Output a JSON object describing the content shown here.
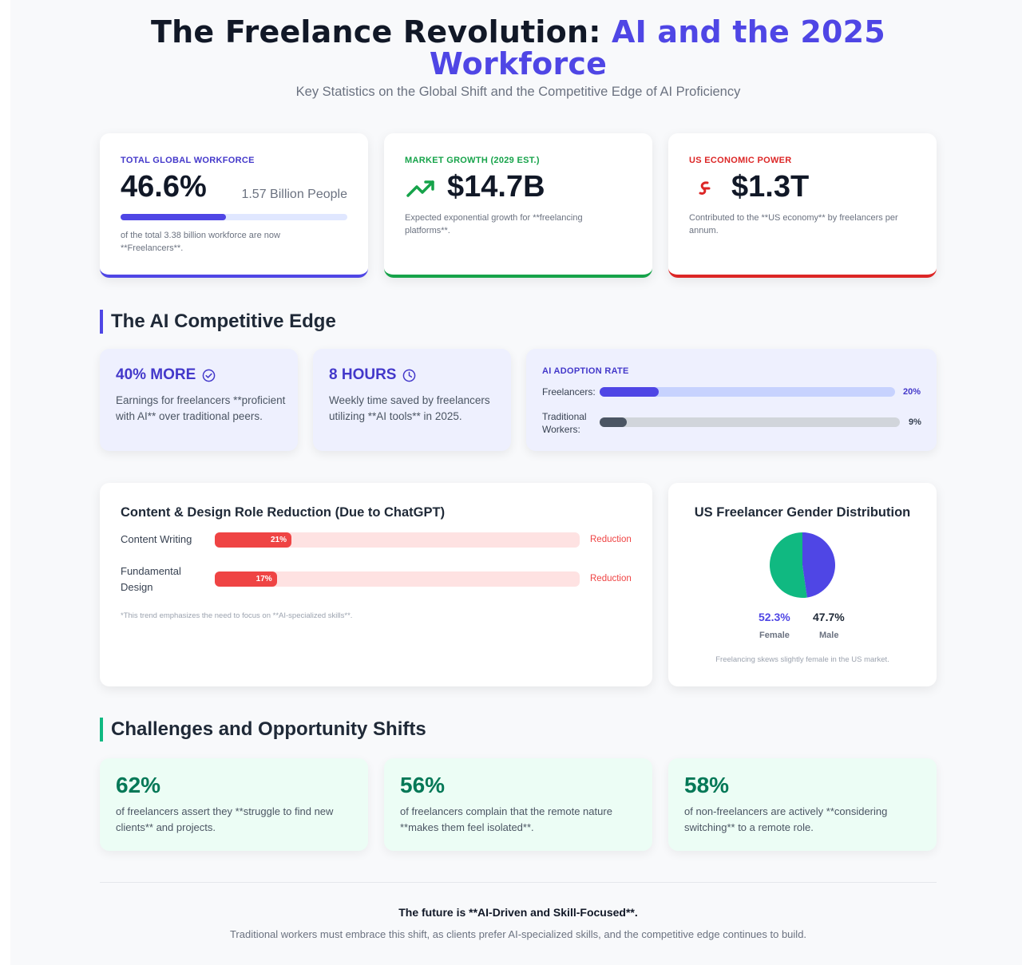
{
  "header": {
    "title_main": "The Freelance Revolution: ",
    "title_accent_1": "AI and the 2025",
    "title_accent_2": "Workforce",
    "subtitle": "Key Statistics on the Global Shift and the Competitive Edge of AI Proficiency"
  },
  "stats": [
    {
      "label": "TOTAL GLOBAL WORKFORCE",
      "value": "46.6%",
      "side": "1.57 Billion People",
      "progress": 0.466,
      "desc": "of the total 3.38 billion workforce are now **Freelancers**.",
      "color": "#4f46e5"
    },
    {
      "label": "MARKET GROWTH (2029 EST.)",
      "value": "$14.7B",
      "icon": "trending-up-icon",
      "desc": "Expected exponential growth for **freelancing platforms**.",
      "color": "#16a34a"
    },
    {
      "label": "US ECONOMIC POWER",
      "value": "$1.3T",
      "icon": "money-icon",
      "desc": "Contributed to the **US economy** by freelancers per annum.",
      "color": "#dc2626"
    }
  ],
  "ai_edge": {
    "heading": "The AI Competitive Edge",
    "cards": [
      {
        "head": "40% MORE",
        "icon": "check-circle-icon",
        "text": "Earnings for freelancers **proficient with AI** over traditional peers."
      },
      {
        "head": "8 HOURS",
        "icon": "clock-icon",
        "text": "Weekly time saved by freelancers utilizing **AI tools** in 2025."
      }
    ],
    "adoption": {
      "title": "AI ADOPTION RATE",
      "rows": [
        {
          "label": "Freelancers:",
          "value": 20,
          "display": "20%"
        },
        {
          "label": "Traditional Workers:",
          "value": 9,
          "display": "9%"
        }
      ]
    }
  },
  "reduction": {
    "title": "Content & Design Role Reduction (Due to ChatGPT)",
    "rows": [
      {
        "label": "Content Writing",
        "value": 21,
        "display": "21%",
        "suffix": "Reduction"
      },
      {
        "label": "Fundamental Design",
        "value": 17,
        "display": "17%",
        "suffix": "Reduction"
      }
    ],
    "note": "*This trend emphasizes the need to focus on **AI-specialized skills**."
  },
  "gender": {
    "title": "US Freelancer Gender Distribution",
    "female_pct": "52.3%",
    "female_label": "Female",
    "male_pct": "47.7%",
    "male_label": "Male",
    "female_value": 52.3,
    "male_value": 47.7,
    "female_color": "#10b981",
    "male_color": "#4f46e5",
    "note": "Freelancing skews slightly female in the US market."
  },
  "challenges": {
    "heading": "Challenges and Opportunity Shifts",
    "items": [
      {
        "pct": "62%",
        "text": "of freelancers assert they **struggle to find new clients** and projects."
      },
      {
        "pct": "56%",
        "text": "of freelancers complain that the remote nature **makes them feel isolated**."
      },
      {
        "pct": "58%",
        "text": "of non-freelancers are actively **considering switching** to a remote role."
      }
    ]
  },
  "footer": {
    "headline": "The future is **AI-Driven and Skill-Focused**.",
    "text": "Traditional workers must embrace this shift, as clients prefer AI-specialized skills, and the competitive edge continues to build."
  }
}
